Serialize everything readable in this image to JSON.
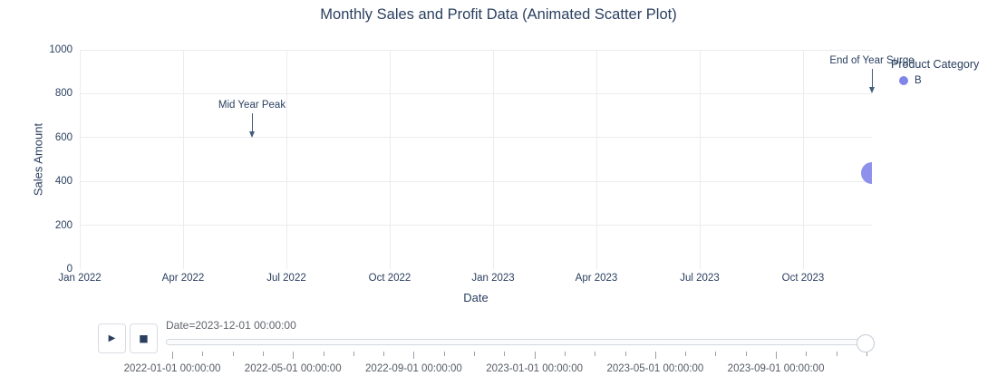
{
  "chart_data": {
    "type": "scatter",
    "animated": true,
    "title": "Monthly Sales and Profit Data (Animated Scatter Plot)",
    "xlabel": "Date",
    "ylabel": "Sales Amount",
    "x_start": "2022-01-01",
    "x_end": "2023-12-01",
    "x_months_span": 23,
    "x_ticks": [
      {
        "month": 0,
        "label": "Jan 2022"
      },
      {
        "month": 3,
        "label": "Apr 2022"
      },
      {
        "month": 6,
        "label": "Jul 2022"
      },
      {
        "month": 9,
        "label": "Oct 2022"
      },
      {
        "month": 12,
        "label": "Jan 2023"
      },
      {
        "month": 15,
        "label": "Apr 2023"
      },
      {
        "month": 18,
        "label": "Jul 2023"
      },
      {
        "month": 21,
        "label": "Oct 2023"
      }
    ],
    "y_ticks": [
      0,
      200,
      400,
      600,
      800,
      1000
    ],
    "ylim": [
      0,
      1000
    ],
    "grid": true,
    "legend": {
      "title": "Product Category",
      "position": "top-right",
      "items": [
        {
          "label": "B",
          "color": "#8185e9"
        }
      ]
    },
    "series": [
      {
        "name": "B",
        "color": "#8185e9",
        "marker_size_px": 24,
        "visible_points": [
          {
            "date": "2023-12-01 00:00:00",
            "month": 23,
            "sales_amount": 440
          }
        ]
      }
    ],
    "annotations": [
      {
        "text": "Mid Year Peak",
        "month": 5,
        "value": 600
      },
      {
        "text": "End of Year Surge",
        "month": 23,
        "value": 800
      }
    ]
  },
  "controls": {
    "play_icon": "▶",
    "stop_icon": "■"
  },
  "slider": {
    "current_value_label": "Date=2023-12-01 00:00:00",
    "steps": 24,
    "active_step": 23,
    "labels": [
      {
        "step": 0,
        "label": "2022-01-01 00:00:00"
      },
      {
        "step": 4,
        "label": "2022-05-01 00:00:00"
      },
      {
        "step": 8,
        "label": "2022-09-01 00:00:00"
      },
      {
        "step": 12,
        "label": "2023-01-01 00:00:00"
      },
      {
        "step": 16,
        "label": "2023-05-01 00:00:00"
      },
      {
        "step": 20,
        "label": "2023-09-01 00:00:00"
      }
    ]
  },
  "colors": {
    "text": "#2a3f5f",
    "grid": "#ebecef",
    "marker": "#8185e9",
    "muted_text": "#62656e"
  }
}
